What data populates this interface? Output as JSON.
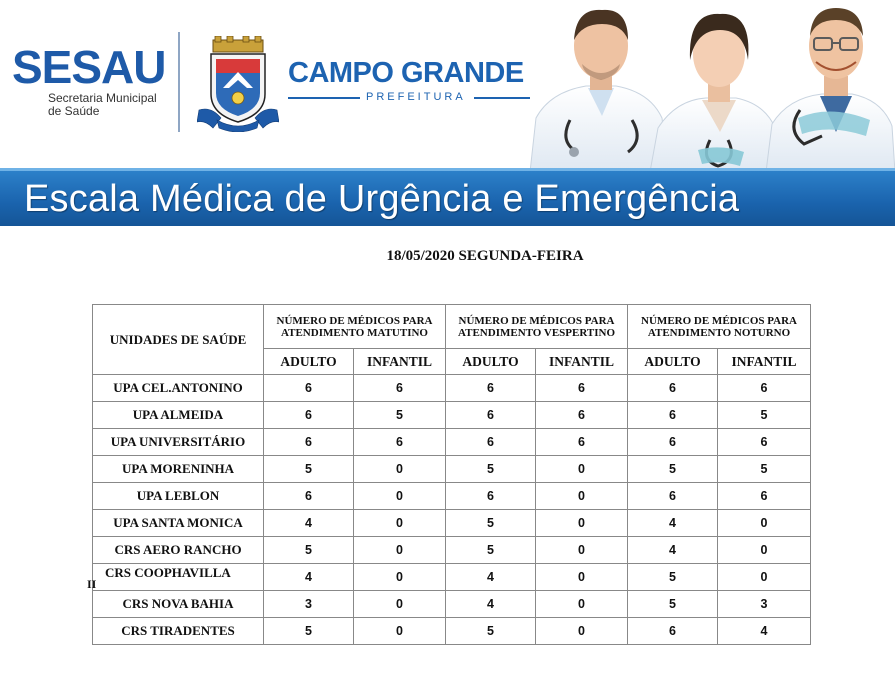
{
  "header": {
    "sesau_logo": "SESAU",
    "sesau_subtitle_line1": "Secretaria Municipal",
    "sesau_subtitle_line2": "de Saúde",
    "city_logo": "CAMPO GRANDE",
    "city_subtitle": "PREFEITURA",
    "banner_title": "Escala Médica de Urgência e Emergência",
    "brand_blue": "#1d63b1",
    "crest_icon": "city-crest-icon",
    "doctors_icon": "doctors-photo-icon"
  },
  "date_title": "18/05/2020 SEGUNDA-FEIRA",
  "table": {
    "col_unidades": "UNIDADES DE SAÚDE",
    "periods": [
      {
        "label": "NÚMERO DE MÉDICOS PARA ATENDIMENTO MATUTINO"
      },
      {
        "label": "NÚMERO DE MÉDICOS PARA ATENDIMENTO VESPERTINO"
      },
      {
        "label": "NÚMERO DE MÉDICOS PARA ATENDIMENTO NOTURNO"
      }
    ],
    "sub_adulto": "ADULTO",
    "sub_infantil": "INFANTIL",
    "rows": [
      {
        "name": "UPA CEL.ANTONINO",
        "values": [
          "6",
          "6",
          "6",
          "6",
          "6",
          "6"
        ]
      },
      {
        "name": "UPA ALMEIDA",
        "values": [
          "6",
          "5",
          "6",
          "6",
          "6",
          "5"
        ]
      },
      {
        "name": "UPA UNIVERSITÁRIO",
        "values": [
          "6",
          "6",
          "6",
          "6",
          "6",
          "6"
        ]
      },
      {
        "name": "UPA MORENINHA",
        "values": [
          "5",
          "0",
          "5",
          "0",
          "5",
          "5"
        ]
      },
      {
        "name": "UPA LEBLON",
        "values": [
          "6",
          "0",
          "6",
          "0",
          "6",
          "6"
        ]
      },
      {
        "name": "UPA SANTA MONICA",
        "values": [
          "4",
          "0",
          "5",
          "0",
          "4",
          "0"
        ]
      },
      {
        "name": "CRS AERO RANCHO",
        "values": [
          "5",
          "0",
          "5",
          "0",
          "4",
          "0"
        ]
      },
      {
        "name": "CRS COOPHAVILLA",
        "name_suffix": "II",
        "values": [
          "4",
          "0",
          "4",
          "0",
          "5",
          "0"
        ]
      },
      {
        "name": "CRS NOVA BAHIA",
        "values": [
          "3",
          "0",
          "4",
          "0",
          "5",
          "3"
        ]
      },
      {
        "name": "CRS TIRADENTES",
        "values": [
          "5",
          "0",
          "5",
          "0",
          "6",
          "4"
        ]
      }
    ]
  }
}
